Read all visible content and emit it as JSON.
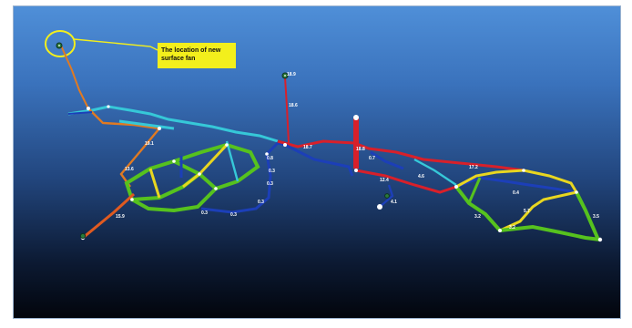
{
  "callout": {
    "text": "The location of new surface fan"
  },
  "colors": {
    "callout_bg": "#f3ef1c",
    "callout_ring": "#f3ef1c",
    "airway_red": "#d8202a",
    "airway_orange": "#e07a22",
    "airway_yellow": "#e8d620",
    "airway_green": "#56c21e",
    "airway_cyan": "#36c8d8",
    "airway_blue": "#1c3fb8",
    "node": "#ffffff"
  },
  "icons": {
    "fan_marker": "fan-icon",
    "junction": "node-dot"
  },
  "labels": {
    "v19_1": "19.1",
    "v18_6": "18.6",
    "v18_7": "18.7",
    "v18_8": "18.8",
    "v18_9": "18.9",
    "v15_9": "15.9",
    "v13_6": "13.6",
    "v12_4": "12.4",
    "v17_2": "17.2",
    "v0_3a": "0.3",
    "v0_3b": "0.3",
    "v0_3c": "0.3",
    "v0_3d": "0.3",
    "v0_3e": "0.3",
    "v0_8": "0.8",
    "v0_7": "0.7",
    "v5_7": "5.7",
    "v3_2a": "3.2",
    "v3_2b": "3.2",
    "v3_5": "3.5",
    "v0_4": "0.4",
    "v4_1": "4.1",
    "v4_6": "4.6"
  }
}
